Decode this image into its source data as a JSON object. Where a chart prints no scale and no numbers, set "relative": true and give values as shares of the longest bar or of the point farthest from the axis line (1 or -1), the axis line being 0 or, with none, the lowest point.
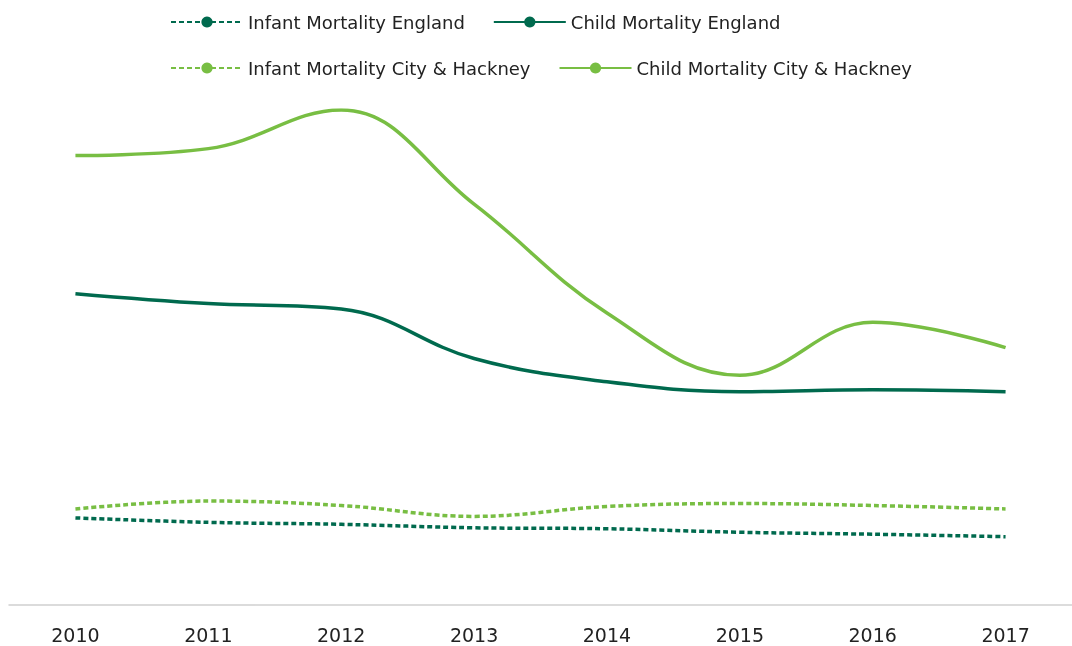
{
  "chart_data": {
    "type": "line",
    "relative": true,
    "categories": [
      "2010",
      "2011",
      "2012",
      "2013",
      "2014",
      "2015",
      "2016",
      "2017"
    ],
    "series": [
      {
        "name": "Infant Mortality England",
        "color": "#006a4e",
        "line_style": "dashed",
        "values": [
          0.176,
          0.167,
          0.163,
          0.156,
          0.154,
          0.147,
          0.143,
          0.138
        ]
      },
      {
        "name": "Child Mortality England",
        "color": "#006a4e",
        "line_style": "solid",
        "values": [
          0.629,
          0.609,
          0.598,
          0.498,
          0.451,
          0.431,
          0.435,
          0.431
        ]
      },
      {
        "name": "Infant Mortality City & Hackney",
        "color": "#78be43",
        "line_style": "dashed",
        "values": [
          0.194,
          0.21,
          0.201,
          0.179,
          0.199,
          0.205,
          0.201,
          0.194
        ]
      },
      {
        "name": "Child Mortality City & Hackney",
        "color": "#78be43",
        "line_style": "solid",
        "values": [
          0.908,
          0.922,
          1,
          0.81,
          0.59,
          0.464,
          0.571,
          0.52
        ]
      }
    ],
    "marker": "none",
    "grid": false,
    "legend": "top"
  }
}
